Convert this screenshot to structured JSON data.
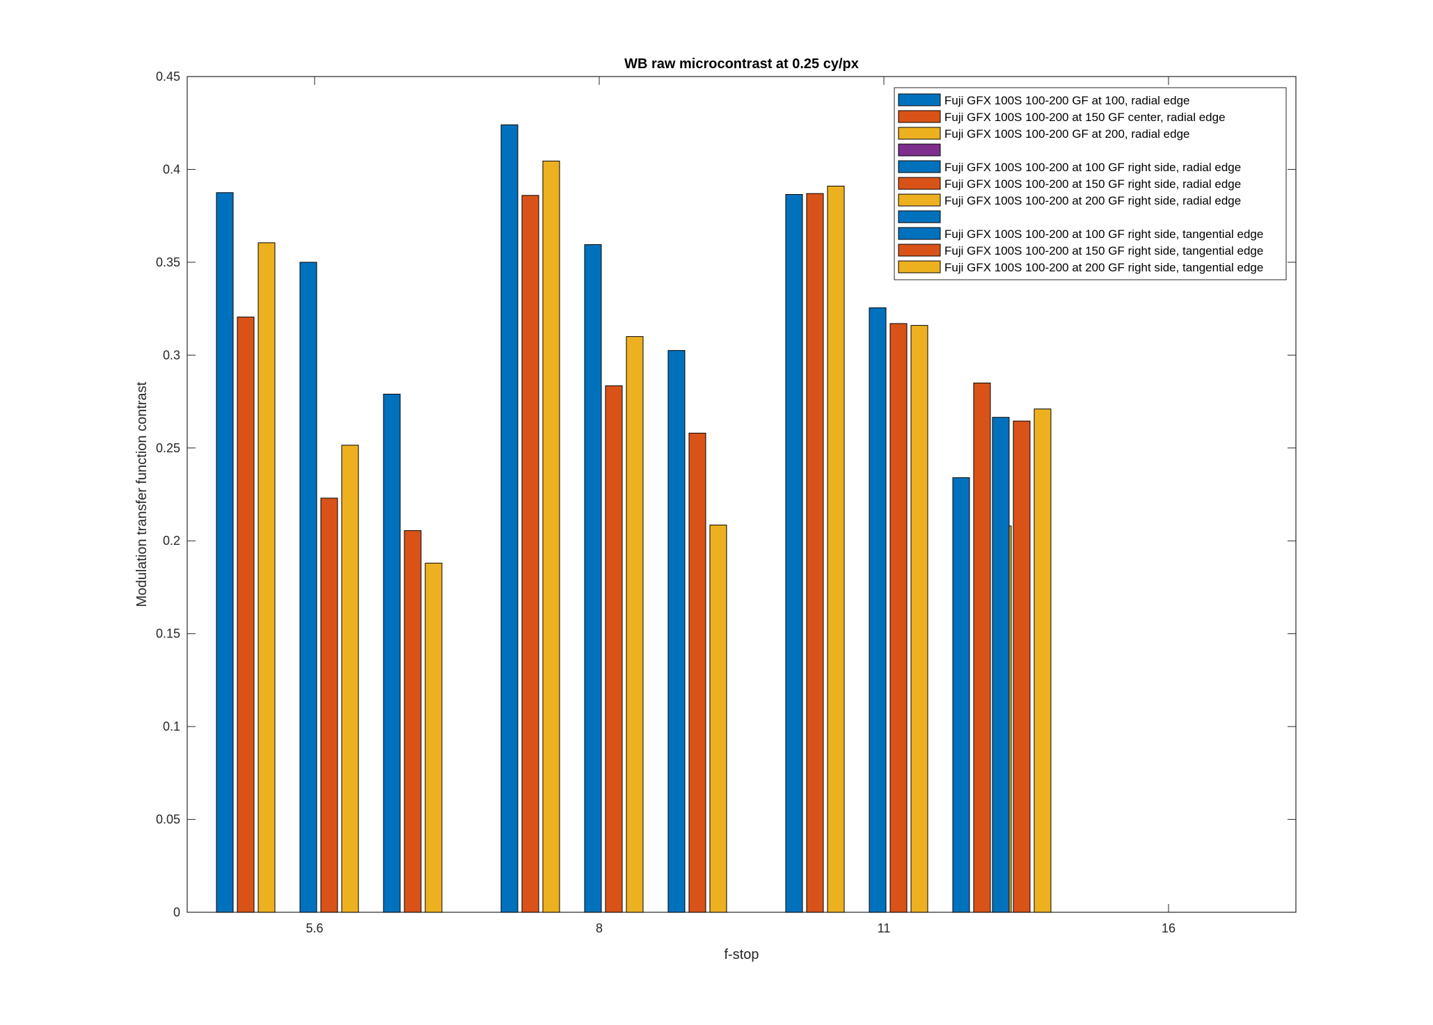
{
  "chart_data": {
    "type": "bar",
    "title": "WB raw  microcontrast at 0.25 cy/px",
    "xlabel": "f-stop",
    "ylabel": "Modulation transfer function contrast",
    "ylim": [
      0,
      0.45
    ],
    "yticks": [
      "0",
      "0.05",
      "0.1",
      "0.15",
      "0.2",
      "0.25",
      "0.3",
      "0.35",
      "0.4",
      "0.45"
    ],
    "xticks": [
      {
        "value": 5.6,
        "label": "5.6"
      },
      {
        "value": 8,
        "label": "8"
      },
      {
        "value": 11,
        "label": "11"
      },
      {
        "value": 16,
        "label": "16"
      }
    ],
    "legend_position": "top-right",
    "colors": {
      "blue": "#0072BD",
      "orange": "#D95319",
      "yellow": "#EDB120",
      "purple": "#7E2F8E"
    },
    "series": [
      {
        "name": "Fuji GFX 100S 100-200 GF at 100, radial edge",
        "color": "#0072BD",
        "x": 5.6,
        "value": 0.3875
      },
      {
        "name": "Fuji GFX 100S 100-200 at 150 GF center, radial edge",
        "color": "#D95319",
        "x": 5.6,
        "value": 0.3205
      },
      {
        "name": "Fuji GFX 100S 100-200 GF at 200, radial edge",
        "color": "#EDB120",
        "x": 5.6,
        "value": 0.3605
      },
      {
        "name": "",
        "color": "#7E2F8E",
        "x": 5.6,
        "value": null
      },
      {
        "name": "Fuji GFX 100S 100-200 at 100 GF right side, radial edge",
        "color": "#0072BD",
        "x": 5.6,
        "value": 0.35
      },
      {
        "name": "Fuji GFX 100S 100-200 at 150 GF right side, radial edge",
        "color": "#D95319",
        "x": 5.6,
        "value": 0.223
      },
      {
        "name": "Fuji GFX 100S 100-200 at 200 GF right side, radial edge",
        "color": "#EDB120",
        "x": 5.6,
        "value": 0.2515
      },
      {
        "name": "",
        "color": "#0072BD",
        "x": 5.6,
        "value": null
      },
      {
        "name": "Fuji GFX 100S 100-200 at 100 GF right side, tangential edge",
        "color": "#0072BD",
        "x": 5.6,
        "value": 0.279
      },
      {
        "name": "Fuji GFX 100S 100-200 at 150 GF right side, tangential edge",
        "color": "#D95319",
        "x": 5.6,
        "value": 0.2055
      },
      {
        "name": "Fuji GFX 100S 100-200 at 200 GF right side, tangential edge",
        "color": "#EDB120",
        "x": 5.6,
        "value": 0.188
      },
      {
        "name": "Fuji GFX 100S 100-200 GF at 100, radial edge",
        "color": "#0072BD",
        "x": 8,
        "value": 0.424
      },
      {
        "name": "Fuji GFX 100S 100-200 at 150 GF center, radial edge",
        "color": "#D95319",
        "x": 8,
        "value": 0.386
      },
      {
        "name": "Fuji GFX 100S 100-200 GF at 200, radial edge",
        "color": "#EDB120",
        "x": 8,
        "value": 0.4045
      },
      {
        "name": "Fuji GFX 100S 100-200 at 100 GF right side, radial edge",
        "color": "#0072BD",
        "x": 8,
        "value": 0.3595
      },
      {
        "name": "Fuji GFX 100S 100-200 at 150 GF right side, radial edge",
        "color": "#D95319",
        "x": 8,
        "value": 0.2835
      },
      {
        "name": "Fuji GFX 100S 100-200 at 200 GF right side, radial edge",
        "color": "#EDB120",
        "x": 8,
        "value": 0.31
      },
      {
        "name": "Fuji GFX 100S 100-200 at 100 GF right side, tangential edge",
        "color": "#0072BD",
        "x": 8,
        "value": 0.3025
      },
      {
        "name": "Fuji GFX 100S 100-200 at 150 GF right side, tangential edge",
        "color": "#D95319",
        "x": 8,
        "value": 0.258
      },
      {
        "name": "Fuji GFX 100S 100-200 at 200 GF right side, tangential edge",
        "color": "#EDB120",
        "x": 8,
        "value": 0.2085
      },
      {
        "name": "Fuji GFX 100S 100-200 GF at 100, radial edge",
        "color": "#0072BD",
        "x": 11,
        "value": 0.3865
      },
      {
        "name": "Fuji GFX 100S 100-200 at 150 GF center, radial edge",
        "color": "#D95319",
        "x": 11,
        "value": 0.387
      },
      {
        "name": "Fuji GFX 100S 100-200 GF at 200, radial edge",
        "color": "#EDB120",
        "x": 11,
        "value": 0.391
      },
      {
        "name": "Fuji GFX 100S 100-200 at 100 GF right side, radial edge",
        "color": "#0072BD",
        "x": 11,
        "value": 0.3255
      },
      {
        "name": "Fuji GFX 100S 100-200 at 150 GF right side, radial edge",
        "color": "#D95319",
        "x": 11,
        "value": 0.317
      },
      {
        "name": "Fuji GFX 100S 100-200 at 200 GF right side, radial edge",
        "color": "#EDB120",
        "x": 11,
        "value": 0.316
      },
      {
        "name": "Fuji GFX 100S 100-200 at 100 GF right side, tangential edge",
        "color": "#0072BD",
        "x": 11,
        "value": 0.234
      },
      {
        "name": "Fuji GFX 100S 100-200 at 150 GF right side, tangential edge",
        "color": "#D95319",
        "x": 11,
        "value": 0.285
      },
      {
        "name": "Fuji GFX 100S 100-200 at 200 GF right side, tangential edge",
        "color": "#EDB120",
        "x": 11,
        "value": 0.208
      },
      {
        "name": "Fuji GFX 100S 100-200 GF at 100, radial edge",
        "color": "#0072BD",
        "x": 16,
        "value": 0.2665
      },
      {
        "name": "Fuji GFX 100S 100-200 at 150 GF center, radial edge",
        "color": "#D95319",
        "x": 16,
        "value": 0.2645
      },
      {
        "name": "Fuji GFX 100S 100-200 GF at 200, radial edge",
        "color": "#EDB120",
        "x": 16,
        "value": 0.271
      }
    ],
    "legend": [
      {
        "label": "Fuji GFX 100S 100-200 GF at 100, radial edge",
        "color": "#0072BD"
      },
      {
        "label": "Fuji GFX 100S 100-200 at 150 GF center, radial edge",
        "color": "#D95319"
      },
      {
        "label": "Fuji GFX 100S 100-200 GF at 200, radial edge",
        "color": "#EDB120"
      },
      {
        "label": "",
        "color": "#7E2F8E"
      },
      {
        "label": "Fuji GFX 100S 100-200 at 100 GF right side, radial edge",
        "color": "#0072BD"
      },
      {
        "label": "Fuji GFX 100S 100-200 at 150 GF right side, radial edge",
        "color": "#D95319"
      },
      {
        "label": "Fuji GFX 100S 100-200 at 200 GF right side, radial edge",
        "color": "#EDB120"
      },
      {
        "label": "",
        "color": "#0072BD"
      },
      {
        "label": "Fuji GFX 100S 100-200 at 100 GF right side, tangential edge",
        "color": "#0072BD"
      },
      {
        "label": "Fuji GFX 100S 100-200 at 150 GF right side, tangential edge",
        "color": "#D95319"
      },
      {
        "label": "Fuji GFX 100S 100-200 at 200 GF right side, tangential edge",
        "color": "#EDB120"
      }
    ]
  }
}
